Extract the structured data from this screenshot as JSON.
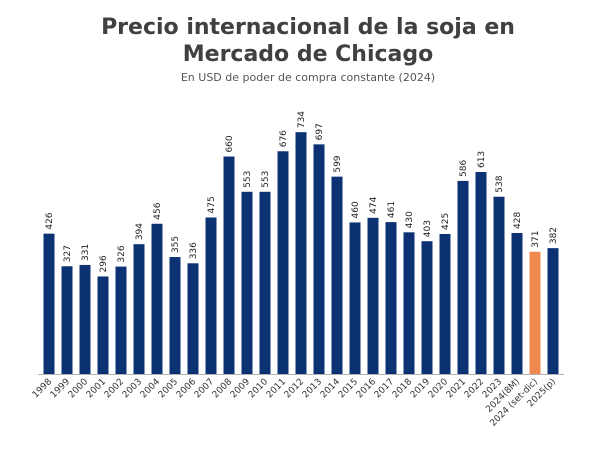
{
  "chart_data": {
    "type": "bar",
    "title_lines": [
      "Precio internacional de la soja en",
      "Mercado de Chicago"
    ],
    "subtitle": "En USD de poder de compra constante (2024)",
    "xlabel": "",
    "ylabel": "",
    "ylim": [
      0,
      780
    ],
    "grid": false,
    "legend": "none",
    "colors": {
      "bar": "#0d3273",
      "highlight": "#f0894f",
      "baseline": "#b0b0b0"
    },
    "categories": [
      "1998",
      "1999",
      "2000",
      "2001",
      "2002",
      "2003",
      "2004",
      "2005",
      "2006",
      "2007",
      "2008",
      "2009",
      "2010",
      "2011",
      "2012",
      "2013",
      "2014",
      "2015",
      "2016",
      "2017",
      "2018",
      "2019",
      "2020",
      "2021",
      "2022",
      "2023",
      "2024(8M)",
      "2024 (set-dic)",
      "2025(p)"
    ],
    "values": [
      426,
      327,
      331,
      296,
      326,
      394,
      456,
      355,
      336,
      475,
      660,
      553,
      553,
      676,
      734,
      697,
      599,
      460,
      474,
      461,
      430,
      403,
      425,
      586,
      613,
      538,
      428,
      371,
      382
    ],
    "highlighted_categories": [
      "2024 (set-dic)"
    ]
  }
}
